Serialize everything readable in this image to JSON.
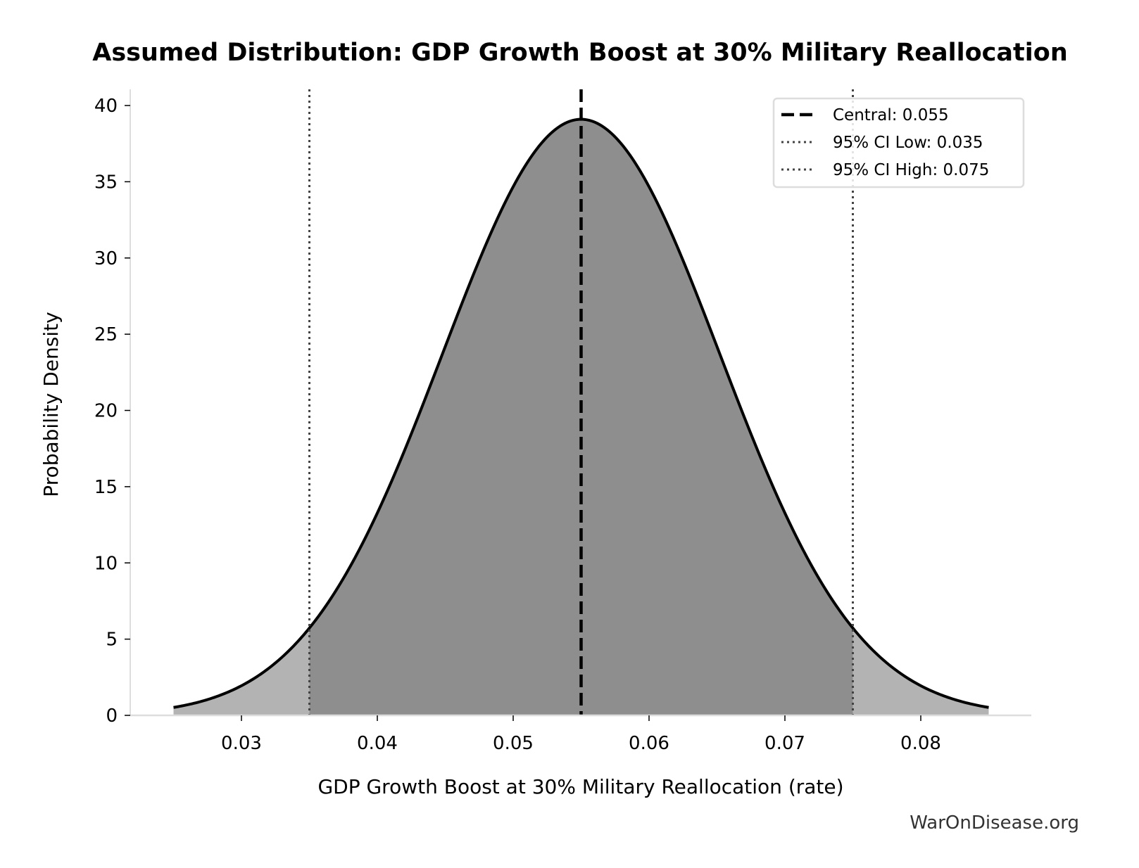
{
  "chart_data": {
    "type": "area",
    "title": "Assumed Distribution: GDP Growth Boost at 30% Military Reallocation",
    "xlabel": "GDP Growth Boost at 30% Military Reallocation (rate)",
    "ylabel": "Probability Density",
    "distribution": {
      "kind": "normal",
      "mean": 0.055,
      "ci95_low": 0.035,
      "ci95_high": 0.075
    },
    "x_range": [
      0.025,
      0.085
    ],
    "xlim": [
      0.022,
      0.0885
    ],
    "ylim": [
      0,
      41.1
    ],
    "x_ticks": [
      "0.03",
      "0.04",
      "0.05",
      "0.06",
      "0.07",
      "0.08"
    ],
    "y_ticks": [
      "0",
      "5",
      "10",
      "15",
      "20",
      "25",
      "30",
      "35",
      "40"
    ],
    "grid": false,
    "legend_position": "top-right",
    "legend": [
      {
        "label": "Central: 0.055",
        "style": "dashed"
      },
      {
        "label": "95% CI Low: 0.035",
        "style": "dotted"
      },
      {
        "label": "95% CI High: 0.075",
        "style": "dotted"
      }
    ],
    "colors": {
      "inner_fill": "#8e8e8e",
      "tail_fill": "#b3b3b3",
      "curve": "#000000",
      "ci_lines": "#444444"
    }
  },
  "watermark": "WarOnDisease.org"
}
